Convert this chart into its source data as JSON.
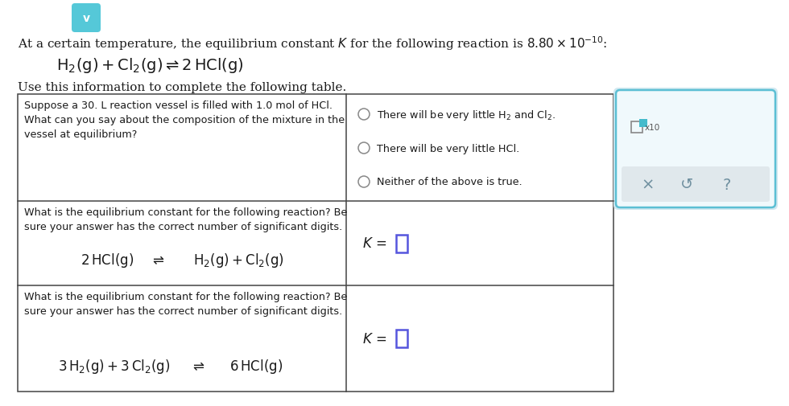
{
  "bg_color": "#ffffff",
  "title_text_plain": "At a certain temperature, the equilibrium constant ",
  "title_K": "$K$",
  "title_text_plain2": " for the following reaction is ",
  "title_exp": "$8.80 \\times 10^{-10}$",
  "title_colon": ":",
  "reaction_main": "$\\mathrm{H_2(g) + Cl_2(g) \\rightleftharpoons 2\\,HCl(g)}$",
  "table_intro": "Use this information to complete the following table.",
  "row1_left": "Suppose a 30. L reaction vessel is filled with 1.0 mol of HCl.\nWhat can you say about the composition of the mixture in the\nvessel at equilibrium?",
  "row1_options": [
    "There will be very little H$_2$ and Cl$_2$.",
    "There will be very little HCl.",
    "Neither of the above is true."
  ],
  "row2_left_text": "What is the equilibrium constant for the following reaction? Be\nsure your answer has the correct number of significant digits.",
  "row2_rxn_left": "$2\\,\\mathrm{HCl(g)}$",
  "row2_rxn_arrow": "$\\rightleftharpoons$",
  "row2_rxn_right": "$\\mathrm{H_2(g)+Cl_2(g)}$",
  "row3_left_text": "What is the equilibrium constant for the following reaction? Be\nsure your answer has the correct number of significant digits.",
  "row3_rxn_left": "$3\\,\\mathrm{H_2(g)+3\\,Cl_2(g)}$",
  "row3_rxn_arrow": "$\\rightleftharpoons$",
  "row3_rxn_right": "$6\\,\\mathrm{HCl(g)}$",
  "K_label": "$K\\,=$",
  "panel_bg": "#f0f9fc",
  "panel_border": "#5bbfd4",
  "btn_bg": "#e0e8ec",
  "table_border": "#444444",
  "text_color": "#1a1a1a",
  "option_circle_color": "#888888",
  "input_box_color": "#5555dd",
  "chevron_color": "#55c8d8",
  "teal_box_color": "#44bbcc"
}
